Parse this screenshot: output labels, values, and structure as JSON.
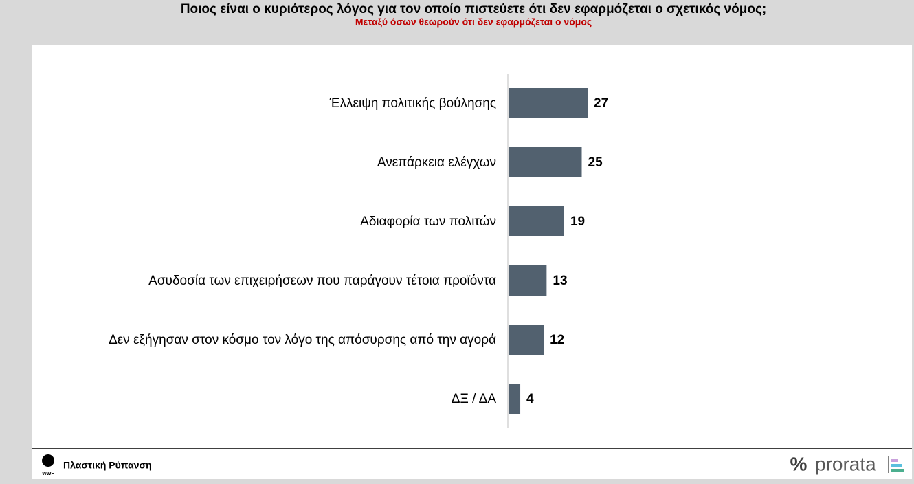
{
  "chart_data": {
    "type": "bar",
    "orientation": "horizontal",
    "title": "Ποιος είναι ο κυριότερος λόγος για τον οποίο πιστεύετε ότι δεν εφαρμόζεται ο σχετικός νόμος;",
    "subtitle": "Μεταξύ όσων θεωρούν ότι δεν εφαρμόζεται ο νόμος",
    "categories": [
      "Έλλειψη πολιτικής βούλησης",
      "Ανεπάρκεια ελέγχων",
      "Αδιαφορία των πολιτών",
      "Ασυδοσία των επιχειρήσεων που παράγουν τέτοια προϊόντα",
      "Δεν εξήγησαν στον κόσμο τον λόγο της απόσυρσης από την αγορά",
      "ΔΞ / ΔΑ"
    ],
    "values": [
      27,
      25,
      19,
      13,
      12,
      4
    ],
    "color": "#52616f"
  },
  "footer": {
    "logo": "WWF",
    "text": "Πλαστική Ρύπανση",
    "brand_symbol": "%",
    "brand": "prorata"
  }
}
